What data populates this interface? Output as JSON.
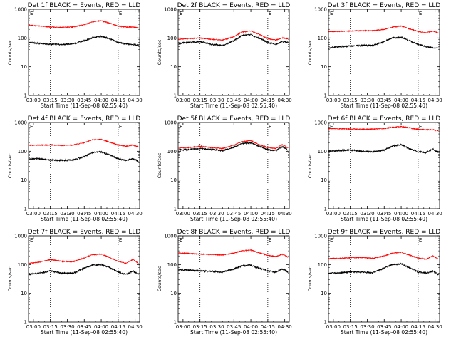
{
  "figure": {
    "background": "#ffffff",
    "colors": {
      "events": "#000000",
      "lld": "#ff0000",
      "axes": "#000000"
    }
  },
  "chart_data": [
    {
      "type": "line",
      "title": "Det 1f BLACK = Events, RED = LLD",
      "xlabel": "Start Time (11-Sep-08 02:55:40)",
      "ylabel": "Counts/sec",
      "yscale": "log",
      "xlim": [
        "02:55:40",
        "04:34:00"
      ],
      "ylim": [
        1,
        1000
      ],
      "xticks": [
        "03:00",
        "03:15",
        "03:30",
        "03:45",
        "04:00",
        "04:15",
        "04:30"
      ],
      "yticks": [
        "1",
        "10",
        "100",
        "1000"
      ],
      "markers": [
        {
          "time": "03:15",
          "label": ""
        },
        {
          "time": "04:15",
          "label": "E"
        }
      ],
      "corner_label": "E",
      "series": [
        {
          "name": "Events",
          "color": "#000000",
          "x": [
            "02:56",
            "03:05",
            "03:15",
            "03:25",
            "03:35",
            "03:45",
            "03:52",
            "04:00",
            "04:07",
            "04:15",
            "04:22",
            "04:28",
            "04:33"
          ],
          "y": [
            70,
            65,
            60,
            60,
            62,
            80,
            100,
            115,
            95,
            70,
            62,
            60,
            55
          ]
        },
        {
          "name": "LLD",
          "color": "#ff0000",
          "x": [
            "02:56",
            "03:05",
            "03:15",
            "03:25",
            "03:35",
            "03:45",
            "03:52",
            "04:00",
            "04:07",
            "04:15",
            "04:22",
            "04:28",
            "04:33"
          ],
          "y": [
            280,
            260,
            240,
            235,
            240,
            290,
            360,
            400,
            330,
            260,
            240,
            240,
            225
          ]
        }
      ]
    },
    {
      "type": "line",
      "title": "Det 2f BLACK = Events, RED = LLD",
      "xlabel": "Start Time (11-Sep-08 02:55:40)",
      "ylabel": "Counts/sec",
      "yscale": "log",
      "xlim": [
        "02:55:40",
        "04:34:00"
      ],
      "ylim": [
        1,
        1000
      ],
      "xticks": [
        "03:00",
        "03:15",
        "03:30",
        "03:45",
        "04:00",
        "04:15",
        "04:30"
      ],
      "yticks": [
        "1",
        "10",
        "100",
        "1000"
      ],
      "markers": [
        {
          "time": "03:15",
          "label": ""
        },
        {
          "time": "04:15",
          "label": "E"
        }
      ],
      "corner_label": "E",
      "series": [
        {
          "name": "Events",
          "color": "#000000",
          "x": [
            "02:56",
            "03:05",
            "03:15",
            "03:25",
            "03:35",
            "03:45",
            "03:52",
            "04:00",
            "04:07",
            "04:15",
            "04:22",
            "04:28",
            "04:33"
          ],
          "y": [
            65,
            70,
            75,
            60,
            55,
            80,
            120,
            130,
            100,
            70,
            60,
            75,
            70
          ]
        },
        {
          "name": "LLD",
          "color": "#ff0000",
          "x": [
            "02:56",
            "03:05",
            "03:15",
            "03:25",
            "03:35",
            "03:45",
            "03:52",
            "04:00",
            "04:07",
            "04:15",
            "04:22",
            "04:28",
            "04:33"
          ],
          "y": [
            90,
            95,
            100,
            90,
            85,
            110,
            160,
            175,
            135,
            95,
            85,
            100,
            95
          ]
        }
      ]
    },
    {
      "type": "line",
      "title": "Det 3f BLACK = Events, RED = LLD",
      "xlabel": "Start Time (11-Sep-08 02:55:40)",
      "ylabel": "Counts/sec",
      "yscale": "log",
      "xlim": [
        "02:55:40",
        "04:34:00"
      ],
      "ylim": [
        1,
        1000
      ],
      "xticks": [
        "03:00",
        "03:15",
        "03:30",
        "03:45",
        "04:00",
        "04:15",
        "04:30"
      ],
      "yticks": [
        "1",
        "10",
        "100",
        "1000"
      ],
      "markers": [
        {
          "time": "03:15",
          "label": ""
        },
        {
          "time": "04:15",
          "label": "E"
        }
      ],
      "corner_label": "E",
      "series": [
        {
          "name": "Events",
          "color": "#000000",
          "x": [
            "02:56",
            "03:05",
            "03:15",
            "03:25",
            "03:35",
            "03:45",
            "03:52",
            "04:00",
            "04:07",
            "04:15",
            "04:22",
            "04:28",
            "04:33"
          ],
          "y": [
            45,
            50,
            52,
            55,
            55,
            75,
            100,
            105,
            80,
            60,
            50,
            45,
            45
          ]
        },
        {
          "name": "LLD",
          "color": "#ff0000",
          "x": [
            "02:56",
            "03:05",
            "03:15",
            "03:25",
            "03:35",
            "03:45",
            "03:52",
            "04:00",
            "04:07",
            "04:15",
            "04:22",
            "04:28",
            "04:33"
          ],
          "y": [
            165,
            170,
            175,
            180,
            180,
            200,
            235,
            260,
            210,
            170,
            150,
            175,
            150
          ]
        }
      ]
    },
    {
      "type": "line",
      "title": "Det 4f BLACK = Events, RED = LLD",
      "xlabel": "Start Time (11-Sep-08 02:55:40)",
      "ylabel": "Counts/sec",
      "yscale": "log",
      "xlim": [
        "02:55:40",
        "04:34:00"
      ],
      "ylim": [
        1,
        1000
      ],
      "xticks": [
        "03:00",
        "03:15",
        "03:30",
        "03:45",
        "04:00",
        "04:15",
        "04:30"
      ],
      "yticks": [
        "1",
        "10",
        "100",
        "1000"
      ],
      "markers": [
        {
          "time": "03:15",
          "label": ""
        },
        {
          "time": "04:15",
          "label": "E"
        }
      ],
      "corner_label": "E",
      "series": [
        {
          "name": "Events",
          "color": "#000000",
          "x": [
            "02:56",
            "03:05",
            "03:15",
            "03:25",
            "03:35",
            "03:45",
            "03:52",
            "04:00",
            "04:07",
            "04:15",
            "04:22",
            "04:28",
            "04:33"
          ],
          "y": [
            55,
            55,
            50,
            48,
            50,
            65,
            90,
            95,
            75,
            55,
            48,
            55,
            45
          ]
        },
        {
          "name": "LLD",
          "color": "#ff0000",
          "x": [
            "02:56",
            "03:05",
            "03:15",
            "03:25",
            "03:35",
            "03:45",
            "03:52",
            "04:00",
            "04:07",
            "04:15",
            "04:22",
            "04:28",
            "04:33"
          ],
          "y": [
            160,
            165,
            165,
            160,
            165,
            200,
            250,
            260,
            210,
            165,
            150,
            165,
            140
          ]
        }
      ]
    },
    {
      "type": "line",
      "title": "Det 5f BLACK = Events, RED = LLD",
      "xlabel": "Start Time (11-Sep-08 02:55:40)",
      "ylabel": "Counts/sec",
      "yscale": "log",
      "xlim": [
        "02:55:40",
        "04:34:00"
      ],
      "ylim": [
        1,
        1000
      ],
      "xticks": [
        "03:00",
        "03:15",
        "03:30",
        "03:45",
        "04:00",
        "04:15",
        "04:30"
      ],
      "yticks": [
        "1",
        "10",
        "100",
        "1000"
      ],
      "markers": [
        {
          "time": "03:15",
          "label": ""
        },
        {
          "time": "04:15",
          "label": "E"
        }
      ],
      "corner_label": "E",
      "series": [
        {
          "name": "Events",
          "color": "#000000",
          "x": [
            "02:56",
            "03:05",
            "03:15",
            "03:25",
            "03:35",
            "03:45",
            "03:52",
            "04:00",
            "04:07",
            "04:15",
            "04:22",
            "04:28",
            "04:33"
          ],
          "y": [
            110,
            115,
            125,
            115,
            105,
            140,
            185,
            200,
            150,
            115,
            105,
            145,
            110
          ]
        },
        {
          "name": "LLD",
          "color": "#ff0000",
          "x": [
            "02:56",
            "03:05",
            "03:15",
            "03:25",
            "03:35",
            "03:45",
            "03:52",
            "04:00",
            "04:07",
            "04:15",
            "04:22",
            "04:28",
            "04:33"
          ],
          "y": [
            130,
            135,
            150,
            135,
            125,
            165,
            215,
            235,
            175,
            135,
            125,
            170,
            130
          ]
        }
      ]
    },
    {
      "type": "line",
      "title": "Det 6f BLACK = Events, RED = LLD",
      "xlabel": "Start Time (11-Sep-08 02:55:40)",
      "ylabel": "Counts/sec",
      "yscale": "log",
      "xlim": [
        "02:55:40",
        "04:34:00"
      ],
      "ylim": [
        1,
        1000
      ],
      "xticks": [
        "03:00",
        "03:15",
        "03:30",
        "03:45",
        "04:00",
        "04:15",
        "04:30"
      ],
      "yticks": [
        "1",
        "10",
        "100",
        "1000"
      ],
      "markers": [
        {
          "time": "03:15",
          "label": ""
        },
        {
          "time": "04:15",
          "label": "E"
        }
      ],
      "corner_label": "E",
      "series": [
        {
          "name": "Events",
          "color": "#000000",
          "x": [
            "02:56",
            "03:05",
            "03:15",
            "03:25",
            "03:35",
            "03:45",
            "03:52",
            "04:00",
            "04:07",
            "04:15",
            "04:22",
            "04:28",
            "04:33"
          ],
          "y": [
            100,
            105,
            110,
            100,
            95,
            110,
            150,
            170,
            125,
            95,
            90,
            120,
            90
          ]
        },
        {
          "name": "LLD",
          "color": "#ff0000",
          "x": [
            "02:56",
            "03:05",
            "03:15",
            "03:25",
            "03:35",
            "03:45",
            "03:52",
            "04:00",
            "04:07",
            "04:15",
            "04:22",
            "04:28",
            "04:33"
          ],
          "y": [
            620,
            610,
            600,
            580,
            590,
            620,
            680,
            720,
            660,
            580,
            560,
            560,
            520
          ]
        }
      ]
    },
    {
      "type": "line",
      "title": "Det 7f BLACK = Events, RED = LLD",
      "xlabel": "Start Time (11-Sep-08 02:55:40)",
      "ylabel": "Counts/sec",
      "yscale": "log",
      "xlim": [
        "02:55:40",
        "04:34:00"
      ],
      "ylim": [
        1,
        1000
      ],
      "xticks": [
        "03:00",
        "03:15",
        "03:30",
        "03:45",
        "04:00",
        "04:15",
        "04:30"
      ],
      "yticks": [
        "1",
        "10",
        "100",
        "1000"
      ],
      "markers": [
        {
          "time": "03:15",
          "label": ""
        },
        {
          "time": "04:15",
          "label": "E"
        }
      ],
      "corner_label": "E",
      "series": [
        {
          "name": "Events",
          "color": "#000000",
          "x": [
            "02:56",
            "03:05",
            "03:15",
            "03:25",
            "03:35",
            "03:45",
            "03:52",
            "04:00",
            "04:07",
            "04:15",
            "04:22",
            "04:28",
            "04:33"
          ],
          "y": [
            45,
            50,
            60,
            50,
            50,
            75,
            95,
            100,
            80,
            55,
            45,
            60,
            45
          ]
        },
        {
          "name": "LLD",
          "color": "#ff0000",
          "x": [
            "02:56",
            "03:05",
            "03:15",
            "03:25",
            "03:35",
            "03:45",
            "03:52",
            "04:00",
            "04:07",
            "04:15",
            "04:22",
            "04:28",
            "04:33"
          ],
          "y": [
            110,
            120,
            150,
            130,
            125,
            170,
            220,
            230,
            180,
            130,
            110,
            150,
            110
          ]
        }
      ]
    },
    {
      "type": "line",
      "title": "Det 8f BLACK = Events, RED = LLD",
      "xlabel": "Start Time (11-Sep-08 02:55:40)",
      "ylabel": "Counts/sec",
      "yscale": "log",
      "xlim": [
        "02:55:40",
        "04:34:00"
      ],
      "ylim": [
        1,
        1000
      ],
      "xticks": [
        "03:00",
        "03:15",
        "03:30",
        "03:45",
        "04:00",
        "04:15",
        "04:30"
      ],
      "yticks": [
        "1",
        "10",
        "100",
        "1000"
      ],
      "markers": [
        {
          "time": "03:15",
          "label": ""
        },
        {
          "time": "04:15",
          "label": "E"
        }
      ],
      "corner_label": "E",
      "series": [
        {
          "name": "Events",
          "color": "#000000",
          "x": [
            "02:56",
            "03:05",
            "03:15",
            "03:25",
            "03:35",
            "03:45",
            "03:52",
            "04:00",
            "04:07",
            "04:15",
            "04:22",
            "04:28",
            "04:33"
          ],
          "y": [
            65,
            65,
            60,
            58,
            55,
            70,
            90,
            95,
            75,
            60,
            55,
            70,
            55
          ]
        },
        {
          "name": "LLD",
          "color": "#ff0000",
          "x": [
            "02:56",
            "03:05",
            "03:15",
            "03:25",
            "03:35",
            "03:45",
            "03:52",
            "04:00",
            "04:07",
            "04:15",
            "04:22",
            "04:28",
            "04:33"
          ],
          "y": [
            250,
            245,
            230,
            225,
            215,
            250,
            300,
            320,
            260,
            210,
            190,
            230,
            180
          ]
        }
      ]
    },
    {
      "type": "line",
      "title": "Det 9f BLACK = Events, RED = LLD",
      "xlabel": "Start Time (11-Sep-08 02:55:40)",
      "ylabel": "Counts/sec",
      "yscale": "log",
      "xlim": [
        "02:55:40",
        "04:34:00"
      ],
      "ylim": [
        1,
        1000
      ],
      "xticks": [
        "03:00",
        "03:15",
        "03:30",
        "03:45",
        "04:00",
        "04:15",
        "04:30"
      ],
      "yticks": [
        "1",
        "10",
        "100",
        "1000"
      ],
      "markers": [
        {
          "time": "03:15",
          "label": ""
        },
        {
          "time": "04:15",
          "label": "E"
        }
      ],
      "corner_label": "E",
      "series": [
        {
          "name": "Events",
          "color": "#000000",
          "x": [
            "02:56",
            "03:05",
            "03:15",
            "03:25",
            "03:35",
            "03:45",
            "03:52",
            "04:00",
            "04:07",
            "04:15",
            "04:22",
            "04:28",
            "04:33"
          ],
          "y": [
            50,
            52,
            55,
            55,
            52,
            75,
            100,
            105,
            80,
            55,
            50,
            60,
            45
          ]
        },
        {
          "name": "LLD",
          "color": "#ff0000",
          "x": [
            "02:56",
            "03:05",
            "03:15",
            "03:25",
            "03:35",
            "03:45",
            "03:52",
            "04:00",
            "04:07",
            "04:15",
            "04:22",
            "04:28",
            "04:33"
          ],
          "y": [
            160,
            165,
            175,
            175,
            165,
            200,
            250,
            270,
            215,
            170,
            155,
            200,
            155
          ]
        }
      ]
    }
  ]
}
